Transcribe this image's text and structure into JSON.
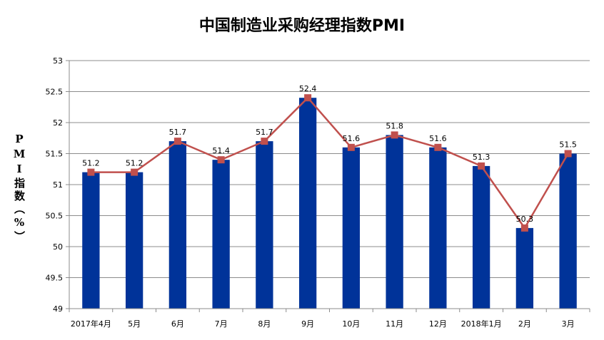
{
  "chart_data": {
    "type": "bar",
    "title": "中国制造业采购经理指数PMI",
    "ylabel": "PMI指数（%）",
    "xlabel": "",
    "categories": [
      "2017年4月",
      "5月",
      "6月",
      "7月",
      "8月",
      "9月",
      "10月",
      "11月",
      "12月",
      "2018年1月",
      "2月",
      "3月"
    ],
    "series": [
      {
        "type": "bar",
        "values": [
          51.2,
          51.2,
          51.7,
          51.4,
          51.7,
          52.4,
          51.6,
          51.8,
          51.6,
          51.3,
          50.3,
          51.5
        ],
        "color": "#003399"
      },
      {
        "type": "line",
        "values": [
          51.2,
          51.2,
          51.7,
          51.4,
          51.7,
          52.4,
          51.6,
          51.8,
          51.6,
          51.3,
          50.3,
          51.5
        ],
        "color": "#C0504D"
      }
    ],
    "data_labels": [
      "51.2",
      "51.2",
      "51.7",
      "51.4",
      "51.7",
      "52.4",
      "51.6",
      "51.8",
      "51.6",
      "51.3",
      "50.3",
      "51.5"
    ],
    "ylim": [
      49,
      53
    ],
    "yticks": [
      "49",
      "49.5",
      "50",
      "50.5",
      "51",
      "51.5",
      "52",
      "52.5",
      "53"
    ],
    "grid": true,
    "legend": "none"
  }
}
